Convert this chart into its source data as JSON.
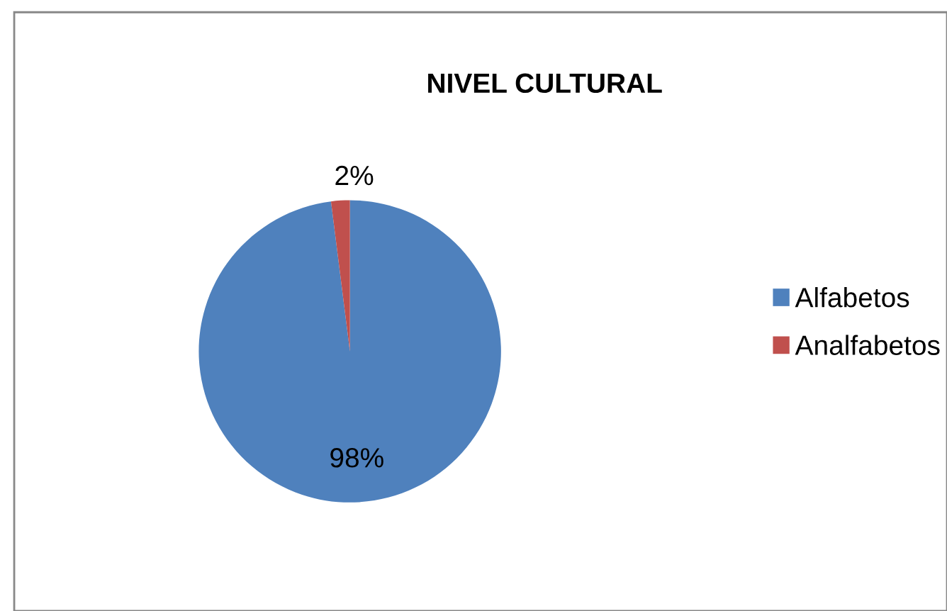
{
  "chart_data": {
    "type": "pie",
    "title": "NIVEL CULTURAL",
    "categories": [
      "Alfabetos",
      "Analfabetos"
    ],
    "values": [
      98,
      2
    ],
    "colors": [
      "#4f81bd",
      "#c0504d"
    ],
    "value_labels": [
      "98%",
      "2%"
    ],
    "legend": "right"
  }
}
